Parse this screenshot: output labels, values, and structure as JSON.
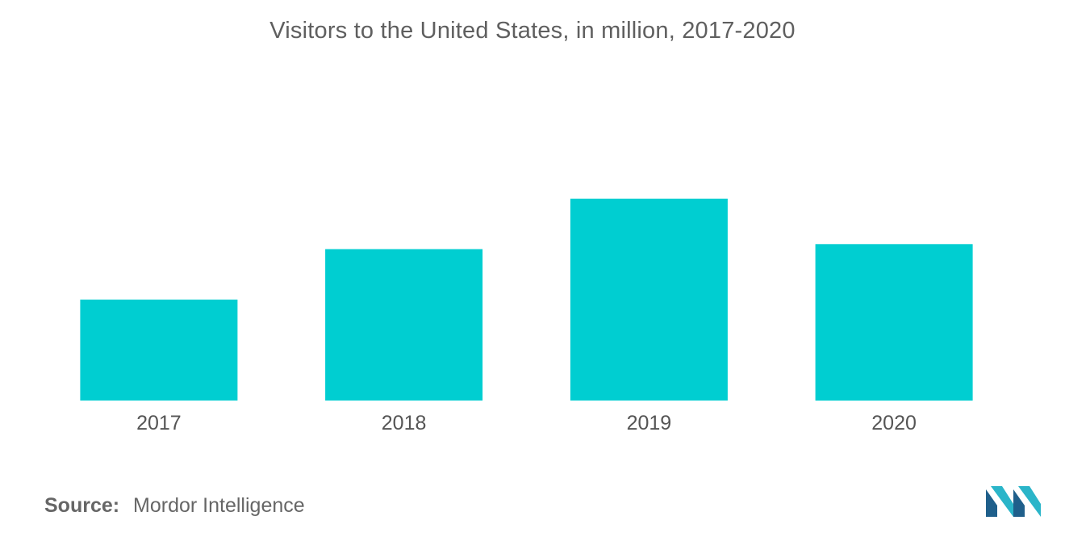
{
  "chart_data": {
    "type": "bar",
    "title": "Visitors to the United States, in million, 2017-2020",
    "categories": [
      "2017",
      "2018",
      "2019",
      "2020"
    ],
    "values": [
      50,
      75,
      100,
      77.5
    ],
    "xlabel": "",
    "ylabel": "",
    "ylim": [
      0,
      100
    ],
    "grid": false,
    "bar_color": "#00ced1"
  },
  "source": {
    "label": "Source:",
    "text": "Mordor Intelligence"
  },
  "logo": {
    "icon": "mordor-intelligence-logo-icon",
    "colors": [
      "#1f5f8b",
      "#2bb5c9"
    ]
  }
}
